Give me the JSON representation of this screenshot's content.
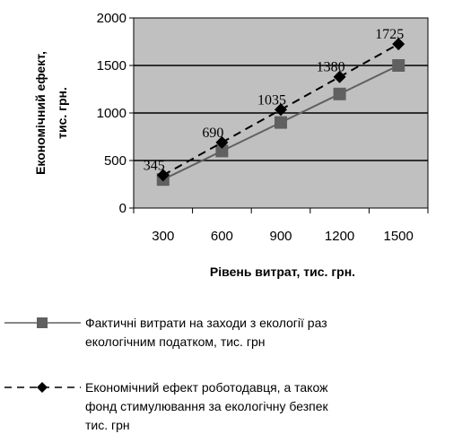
{
  "chart_data": {
    "type": "line",
    "categories": [
      "300",
      "600",
      "900",
      "1200",
      "1500"
    ],
    "x": [
      300,
      600,
      900,
      1200,
      1500
    ],
    "xlabel": "Рівень витрат, тис. грн.",
    "ylabel_line1": "Економічний ефект,",
    "ylabel_line2": "тис. грн.",
    "ylim": [
      0,
      2000
    ],
    "yticks": [
      0,
      500,
      1000,
      1500,
      2000
    ],
    "ytick_labels": [
      "0",
      "500",
      "1000",
      "1500",
      "2000"
    ],
    "grid": "horizontal",
    "plot_background": "#c0c0c0",
    "legend_placement": "bottom",
    "series": [
      {
        "name_line1": "Фактичні витрати на заходи з екології раз",
        "name_line2": "екологічним податком, тис. грн",
        "values": [
          300,
          600,
          900,
          1200,
          1500
        ],
        "color": "#606060",
        "line_style": "solid",
        "marker": "square"
      },
      {
        "name_line1": "Економічний ефект роботодавця, а також",
        "name_line2": "фонд стимулювання за екологічну безпек",
        "name_line3": "тис. грн",
        "values": [
          345,
          690,
          1035,
          1380,
          1725
        ],
        "data_labels": [
          "345",
          "690",
          "1035",
          "1380",
          "1725"
        ],
        "color": "#000000",
        "line_style": "dashed",
        "marker": "diamond"
      }
    ]
  }
}
